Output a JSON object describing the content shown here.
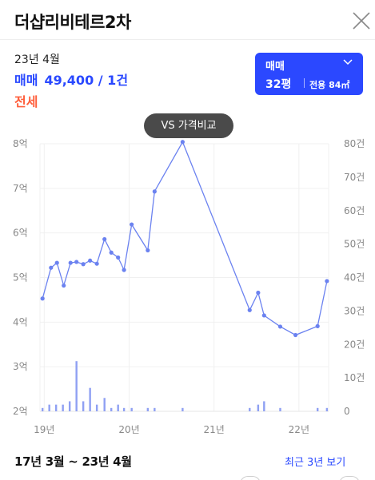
{
  "header": {
    "title": "더샵리비테르2차",
    "close_icon": "close-icon"
  },
  "summary": {
    "date": "23년 4월",
    "trade_type": "매매",
    "price": "49,400 / 1건",
    "jeonse_label": "전세"
  },
  "filter": {
    "type_label": "매매",
    "pyeong": "32평",
    "area": "전용 84㎡",
    "dropdown_icon": "chevron-down-icon"
  },
  "vs_button": {
    "label": "VS 가격비교"
  },
  "footer": {
    "period": "17년 3월 ~ 23년 4월",
    "recent_link": "최근 3년 보기"
  },
  "colors": {
    "accent": "#2948ff",
    "jeonse": "#ff5f3c",
    "line": "#6b82f0",
    "bar": "#8fa0f3"
  },
  "chart_data": {
    "type": "line",
    "left_axis": {
      "ticks": [
        "2억",
        "3억",
        "4억",
        "5억",
        "6억",
        "7억",
        "8억"
      ],
      "range": [
        2,
        8
      ],
      "unit": "억"
    },
    "right_axis": {
      "ticks": [
        "0",
        "10건",
        "20건",
        "30건",
        "40건",
        "50건",
        "60건",
        "70건",
        "80건"
      ],
      "range": [
        0,
        80
      ]
    },
    "x_ticks": [
      {
        "label": "19년",
        "x": 19.0
      },
      {
        "label": "20년",
        "x": 20.0
      },
      {
        "label": "21년",
        "x": 21.0
      },
      {
        "label": "22년",
        "x": 22.0
      }
    ],
    "x_range": [
      18.95,
      22.35
    ],
    "series": [
      {
        "values": [
          {
            "x": 18.98,
            "y": 4.53
          },
          {
            "x": 19.08,
            "y": 5.22
          },
          {
            "x": 19.15,
            "y": 5.33
          },
          {
            "x": 19.23,
            "y": 4.82
          },
          {
            "x": 19.31,
            "y": 5.33
          },
          {
            "x": 19.38,
            "y": 5.35
          },
          {
            "x": 19.46,
            "y": 5.3
          },
          {
            "x": 19.54,
            "y": 5.38
          },
          {
            "x": 19.62,
            "y": 5.31
          },
          {
            "x": 19.71,
            "y": 5.86
          },
          {
            "x": 19.79,
            "y": 5.56
          },
          {
            "x": 19.87,
            "y": 5.45
          },
          {
            "x": 19.94,
            "y": 5.17
          },
          {
            "x": 20.03,
            "y": 6.19
          },
          {
            "x": 20.22,
            "y": 5.61
          },
          {
            "x": 20.3,
            "y": 6.93
          },
          {
            "x": 20.63,
            "y": 8.04
          },
          {
            "x": 21.42,
            "y": 4.27
          },
          {
            "x": 21.52,
            "y": 4.66
          },
          {
            "x": 21.59,
            "y": 4.15
          },
          {
            "x": 21.78,
            "y": 3.9
          },
          {
            "x": 21.96,
            "y": 3.71
          },
          {
            "x": 22.22,
            "y": 3.91
          },
          {
            "x": 22.33,
            "y": 4.92
          }
        ]
      }
    ],
    "volume": [
      {
        "x": 18.98,
        "v": 1
      },
      {
        "x": 19.06,
        "v": 2
      },
      {
        "x": 19.14,
        "v": 2
      },
      {
        "x": 19.22,
        "v": 2
      },
      {
        "x": 19.3,
        "v": 3
      },
      {
        "x": 19.38,
        "v": 15
      },
      {
        "x": 19.46,
        "v": 3
      },
      {
        "x": 19.54,
        "v": 7
      },
      {
        "x": 19.62,
        "v": 2
      },
      {
        "x": 19.71,
        "v": 4
      },
      {
        "x": 19.79,
        "v": 1
      },
      {
        "x": 19.87,
        "v": 2
      },
      {
        "x": 19.94,
        "v": 1
      },
      {
        "x": 20.03,
        "v": 1
      },
      {
        "x": 20.22,
        "v": 1
      },
      {
        "x": 20.3,
        "v": 1
      },
      {
        "x": 20.63,
        "v": 1
      },
      {
        "x": 21.42,
        "v": 1
      },
      {
        "x": 21.52,
        "v": 2
      },
      {
        "x": 21.59,
        "v": 3
      },
      {
        "x": 21.78,
        "v": 1
      },
      {
        "x": 22.22,
        "v": 1
      },
      {
        "x": 22.33,
        "v": 1
      }
    ],
    "grid": true
  }
}
